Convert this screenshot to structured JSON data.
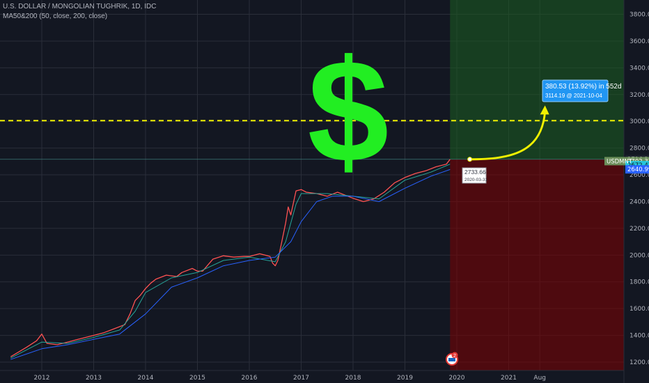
{
  "header": {
    "title": "U.S. DOLLAR / MONGOLIAN TUGHRIK, 1D, IDC",
    "indicator": "MA50&200 (50, close, 200, close)"
  },
  "dollar_sign": "$",
  "symbol_tag": "USDMNT",
  "measure": {
    "main": "380.53 (13.92%) in 552d",
    "sub": "3114.19 @ 2021-10-04"
  },
  "tooltip": {
    "price": "2733.66",
    "date": "2020-03-31"
  },
  "colors": {
    "background": "#131722",
    "price": "#ff5252",
    "ma50": "#26a69a",
    "ma200": "#2962ff",
    "green_zone": "#1b5e20",
    "red_zone": "#7f0000",
    "dashed_line": "#f0f000",
    "arrow": "#f0f000",
    "dollar": "#22ee22"
  },
  "event_badge": "2",
  "chart_data": {
    "type": "line",
    "title": "U.S. DOLLAR / MONGOLIAN TUGHRIK, 1D, IDC",
    "xlabel": "",
    "ylabel": "",
    "ylim": [
      1150,
      3900
    ],
    "y_ticks": [
      1200,
      1400,
      1600,
      1800,
      2000,
      2200,
      2400,
      2600,
      2800,
      3000,
      3200,
      3400,
      3600,
      3800
    ],
    "x_ticks": [
      "2012",
      "2013",
      "2014",
      "2015",
      "2016",
      "2017",
      "2018",
      "2019",
      "2020",
      "2021",
      "Aug"
    ],
    "price_labels": [
      "2716.36",
      "2702.33",
      "2672.47",
      "2640.99"
    ],
    "series": [
      {
        "name": "USDMNT",
        "x": [
          2011.4,
          2011.7,
          2011.9,
          2012.0,
          2012.1,
          2012.3,
          2012.5,
          2012.7,
          2012.9,
          2013.0,
          2013.2,
          2013.4,
          2013.6,
          2013.7,
          2013.8,
          2013.9,
          2014.0,
          2014.1,
          2014.2,
          2014.4,
          2014.6,
          2014.7,
          2014.9,
          2015.0,
          2015.1,
          2015.3,
          2015.5,
          2015.7,
          2015.9,
          2016.0,
          2016.2,
          2016.4,
          2016.45,
          2016.5,
          2016.55,
          2016.6,
          2016.7,
          2016.75,
          2016.8,
          2016.9,
          2017.0,
          2017.1,
          2017.3,
          2017.5,
          2017.7,
          2017.9,
          2018.0,
          2018.2,
          2018.4,
          2018.6,
          2018.8,
          2019.0,
          2019.2,
          2019.4,
          2019.6,
          2019.8,
          2019.87
        ],
        "values": [
          1240,
          1310,
          1360,
          1410,
          1340,
          1330,
          1350,
          1370,
          1390,
          1400,
          1420,
          1450,
          1480,
          1560,
          1660,
          1700,
          1750,
          1790,
          1820,
          1850,
          1840,
          1870,
          1900,
          1880,
          1880,
          1970,
          1995,
          1985,
          1990,
          1990,
          2010,
          1990,
          1940,
          1920,
          1960,
          2050,
          2240,
          2360,
          2300,
          2480,
          2490,
          2470,
          2460,
          2440,
          2470,
          2440,
          2425,
          2400,
          2420,
          2470,
          2540,
          2580,
          2610,
          2630,
          2660,
          2680,
          2716
        ]
      },
      {
        "name": "MA50",
        "x": [
          2011.4,
          2012.0,
          2012.5,
          2013.0,
          2013.5,
          2013.8,
          2014.0,
          2014.5,
          2015.0,
          2015.5,
          2016.0,
          2016.5,
          2016.7,
          2016.9,
          2017.0,
          2017.5,
          2018.0,
          2018.5,
          2019.0,
          2019.5,
          2019.87
        ],
        "values": [
          1230,
          1350,
          1340,
          1385,
          1440,
          1580,
          1720,
          1830,
          1870,
          1960,
          1985,
          1950,
          2100,
          2380,
          2460,
          2460,
          2440,
          2420,
          2560,
          2620,
          2680
        ]
      },
      {
        "name": "MA200",
        "x": [
          2011.4,
          2012.0,
          2012.5,
          2013.0,
          2013.5,
          2014.0,
          2014.5,
          2015.0,
          2015.5,
          2016.0,
          2016.5,
          2016.8,
          2017.0,
          2017.3,
          2017.6,
          2018.0,
          2018.5,
          2019.0,
          2019.5,
          2019.87
        ],
        "values": [
          1220,
          1300,
          1330,
          1370,
          1410,
          1560,
          1760,
          1830,
          1920,
          1960,
          1985,
          2100,
          2250,
          2400,
          2440,
          2440,
          2400,
          2500,
          2590,
          2640
        ]
      }
    ],
    "annotations": [
      {
        "type": "horizontal_line",
        "y": 3005
      },
      {
        "type": "curved_arrow",
        "from": {
          "x": 2020.25,
          "y": 2716
        },
        "to": {
          "x": 2021.7,
          "y": 3114
        }
      }
    ],
    "zones": [
      {
        "from_x": 2019.87,
        "to_x": 2021.85,
        "above": 2716
      },
      {
        "from_x": 2019.87,
        "to_x": 2021.85,
        "below": 2716
      }
    ],
    "grid": true,
    "legend": "none"
  }
}
